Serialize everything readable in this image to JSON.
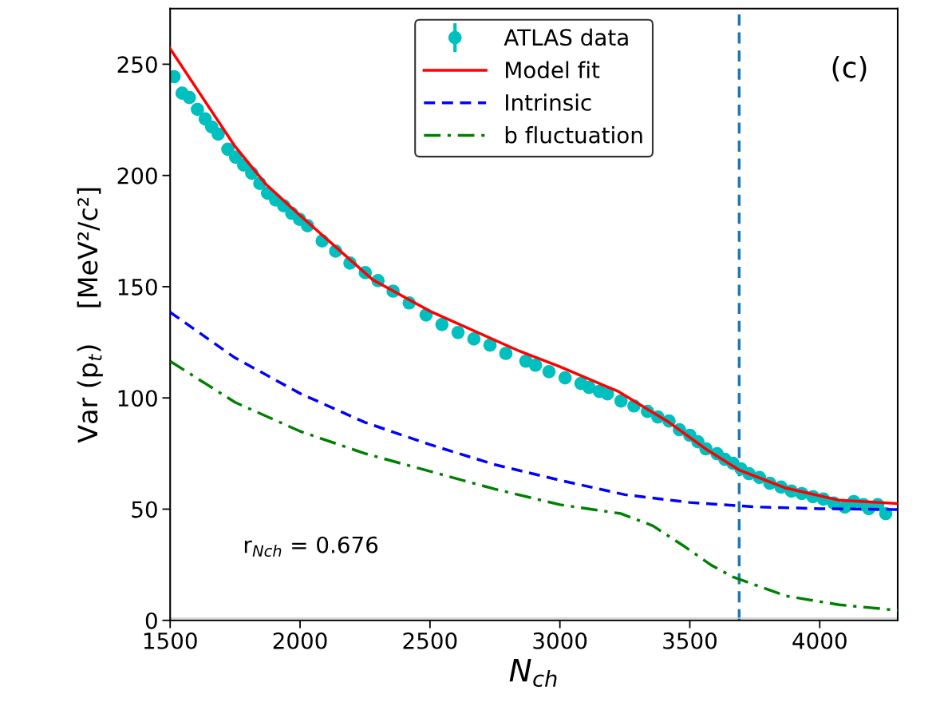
{
  "chart_data": {
    "type": "line",
    "xlabel": "N$_{ch}$",
    "ylabel": "Var (p$_{t}$)    [MeV²/c²]",
    "xlim": [
      1500,
      4300
    ],
    "ylim": [
      0,
      275
    ],
    "xticks": [
      1500,
      2000,
      2500,
      3000,
      3500,
      4000
    ],
    "yticks": [
      0,
      50,
      100,
      150,
      200,
      250
    ],
    "grid": false,
    "legend": "top",
    "series": [
      {
        "name": "ATLAS data",
        "type": "scatter",
        "color": "#00bfbf",
        "marker": "circle",
        "x": [
          1515,
          1546,
          1574,
          1605,
          1635,
          1660,
          1685,
          1722,
          1752,
          1783,
          1814,
          1845,
          1875,
          1906,
          1937,
          1968,
          1998,
          2029,
          2085,
          2137,
          2192,
          2251,
          2300,
          2358,
          2420,
          2485,
          2546,
          2608,
          2669,
          2731,
          2792,
          2869,
          2906,
          2958,
          3020,
          3081,
          3112,
          3152,
          3183,
          3235,
          3285,
          3337,
          3377,
          3420,
          3460,
          3500,
          3531,
          3562,
          3605,
          3635,
          3666,
          3697,
          3728,
          3768,
          3808,
          3851,
          3891,
          3931,
          3974,
          4014,
          4054,
          4097,
          4131,
          4168,
          4189,
          4223,
          4254
        ],
        "values": [
          244.4,
          237,
          235,
          229.7,
          225.4,
          221.8,
          218.6,
          211.8,
          208.2,
          204.7,
          201,
          196.4,
          192,
          189,
          186.4,
          183,
          180.3,
          177.4,
          170.6,
          166,
          160.6,
          156.3,
          152.7,
          148,
          142.7,
          137.3,
          133,
          129.4,
          126.5,
          123.7,
          120,
          116.5,
          114.7,
          111.8,
          109,
          106.5,
          104.7,
          102.9,
          101.8,
          98.6,
          96.4,
          93.9,
          91.4,
          89.6,
          85.7,
          83.2,
          80.3,
          77.1,
          74.9,
          72.4,
          70.6,
          68.1,
          65.9,
          64.2,
          61.6,
          59.9,
          58.1,
          57,
          55.6,
          54.5,
          52.7,
          50.9,
          53.4,
          52,
          50.2,
          52,
          48
        ]
      },
      {
        "name": "Model fit",
        "color": "#ff0000",
        "line_style": "solid",
        "x": [
          1500,
          1750,
          1869,
          2000,
          2281,
          2500,
          2845,
          3000,
          3223,
          3420,
          3562,
          3691,
          3869,
          4075,
          4300
        ],
        "values": [
          257,
          213,
          196,
          182,
          153,
          139,
          121,
          114,
          103,
          89,
          77,
          67.5,
          59.5,
          54,
          52.5
        ]
      },
      {
        "name": "Intrinsic",
        "color": "#0000ff",
        "line_style": "dashed",
        "x": [
          1500,
          1750,
          2000,
          2250,
          2500,
          2750,
          3000,
          3250,
          3500,
          3750,
          4000,
          4300
        ],
        "values": [
          138.5,
          118,
          102,
          89,
          79,
          70,
          63,
          56.5,
          53,
          51,
          50.2,
          49.8
        ]
      },
      {
        "name": "b fluctuation",
        "color": "#008000",
        "line_style": "dashdot",
        "x": [
          1500,
          1750,
          2000,
          2250,
          2500,
          2750,
          3000,
          3235,
          3358,
          3482,
          3580,
          3666,
          3869,
          4075,
          4300
        ],
        "values": [
          116.5,
          98,
          85,
          75,
          67,
          59,
          52,
          48,
          42.5,
          33,
          25,
          19.5,
          11,
          7,
          4.5
        ]
      }
    ],
    "ref_lines": [
      {
        "axis": "x",
        "value": 3690,
        "color": "#1f77b4",
        "line_style": "dashed"
      },
      {
        "axis": "y",
        "value": 1,
        "color": "#cccccc",
        "line_style": "solid"
      }
    ],
    "annotations": [
      {
        "text": "(c)"
      },
      {
        "text": "r$_{Nch}$ = 0.676"
      }
    ]
  }
}
